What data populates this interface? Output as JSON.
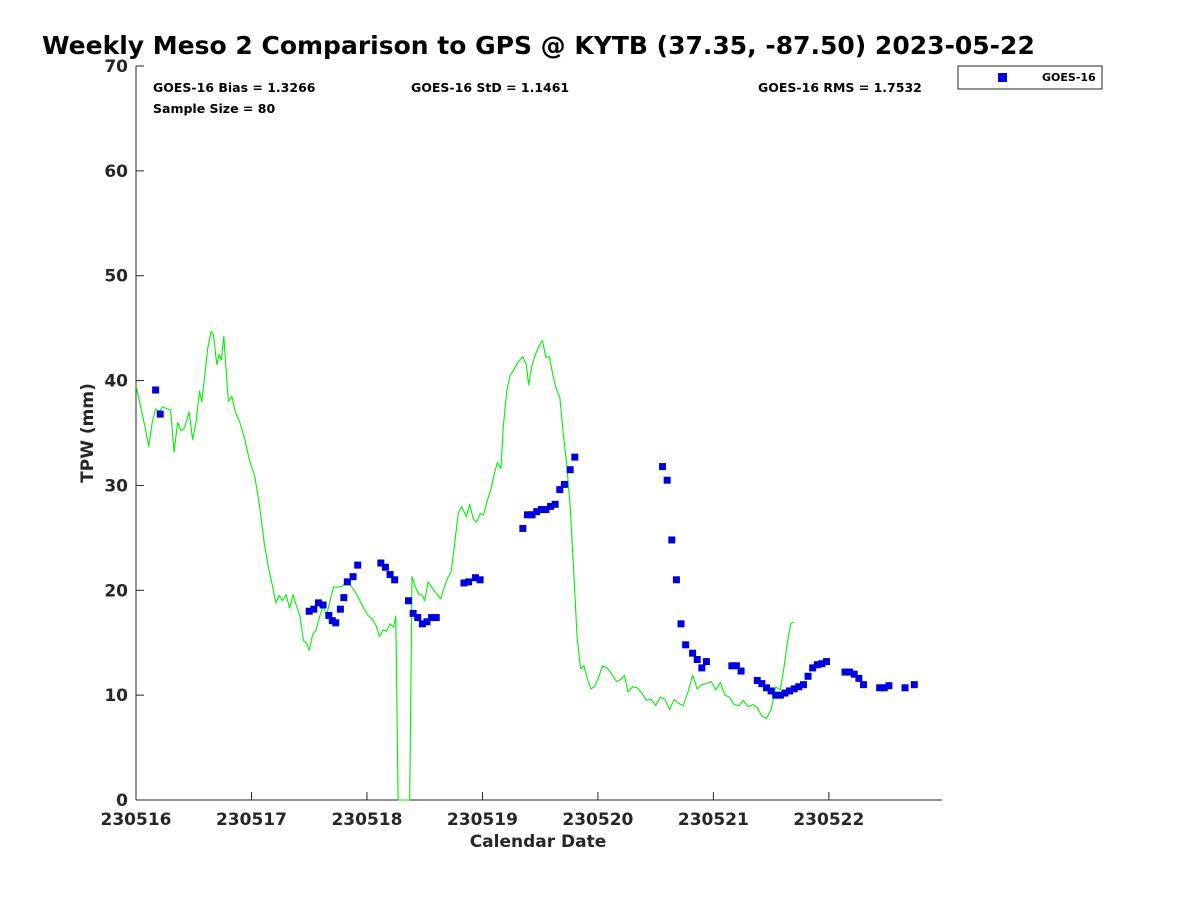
{
  "chart_data": {
    "type": "line",
    "title": "Weekly Meso 2 Comparison to GPS @ KYTB (37.35, -87.50) 2023-05-22",
    "xlabel": "Calendar Date",
    "ylabel": "TPW (mm)",
    "xlim": [
      0,
      6.98
    ],
    "ylim": [
      0,
      70
    ],
    "yticks": [
      0,
      10,
      20,
      30,
      40,
      50,
      60,
      70
    ],
    "xticks": [
      {
        "value": 0,
        "label": "230516"
      },
      {
        "value": 1,
        "label": "230517"
      },
      {
        "value": 2,
        "label": "230518"
      },
      {
        "value": 3,
        "label": "230519"
      },
      {
        "value": 4,
        "label": "230520"
      },
      {
        "value": 5,
        "label": "230521"
      },
      {
        "value": 6,
        "label": "230522"
      }
    ],
    "grid": false,
    "legend_position": "outside top-right",
    "stats": {
      "bias": "GOES-16 Bias = 1.3266",
      "std": "GOES-16 StD = 1.1461",
      "rms": "GOES-16 RMS = 1.7532",
      "sample": "Sample Size = 80"
    },
    "series": [
      {
        "type": "line",
        "color": "#00ee00",
        "points": [
          [
            0.0,
            39.5
          ],
          [
            0.04,
            37.5
          ],
          [
            0.08,
            35.5
          ],
          [
            0.11,
            33.7
          ],
          [
            0.14,
            36.0
          ],
          [
            0.17,
            37.3
          ],
          [
            0.2,
            37.0
          ],
          [
            0.23,
            37.5
          ],
          [
            0.27,
            37.3
          ],
          [
            0.3,
            37.2
          ],
          [
            0.33,
            33.2
          ],
          [
            0.36,
            36.0
          ],
          [
            0.39,
            35.2
          ],
          [
            0.42,
            35.5
          ],
          [
            0.46,
            37.0
          ],
          [
            0.49,
            34.4
          ],
          [
            0.52,
            36.0
          ],
          [
            0.55,
            39.0
          ],
          [
            0.57,
            38.0
          ],
          [
            0.6,
            41.0
          ],
          [
            0.62,
            43.0
          ],
          [
            0.65,
            44.7
          ],
          [
            0.67,
            44.4
          ],
          [
            0.7,
            41.5
          ],
          [
            0.72,
            42.5
          ],
          [
            0.74,
            42.0
          ],
          [
            0.76,
            44.2
          ],
          [
            0.78,
            41.0
          ],
          [
            0.8,
            38.0
          ],
          [
            0.83,
            38.5
          ],
          [
            0.86,
            37.0
          ],
          [
            0.9,
            36.0
          ],
          [
            0.94,
            34.5
          ],
          [
            0.98,
            32.5
          ],
          [
            1.03,
            30.8
          ],
          [
            1.07,
            28.0
          ],
          [
            1.11,
            24.5
          ],
          [
            1.15,
            22.0
          ],
          [
            1.18,
            20.5
          ],
          [
            1.21,
            18.8
          ],
          [
            1.24,
            19.5
          ],
          [
            1.27,
            19.0
          ],
          [
            1.3,
            19.6
          ],
          [
            1.33,
            18.3
          ],
          [
            1.36,
            19.6
          ],
          [
            1.39,
            18.5
          ],
          [
            1.42,
            17.5
          ],
          [
            1.45,
            15.2
          ],
          [
            1.48,
            14.9
          ],
          [
            1.5,
            14.3
          ],
          [
            1.53,
            15.8
          ],
          [
            1.56,
            16.2
          ],
          [
            1.59,
            17.5
          ],
          [
            1.62,
            18.5
          ],
          [
            1.65,
            17.6
          ],
          [
            1.68,
            19.0
          ],
          [
            1.71,
            20.3
          ],
          [
            1.75,
            20.3
          ],
          [
            1.79,
            20.4
          ],
          [
            1.82,
            20.9
          ],
          [
            1.85,
            20.6
          ],
          [
            1.89,
            20.0
          ],
          [
            1.93,
            19.2
          ],
          [
            1.97,
            18.3
          ],
          [
            2.01,
            17.6
          ],
          [
            2.05,
            17.2
          ],
          [
            2.08,
            16.6
          ],
          [
            2.11,
            15.6
          ],
          [
            2.14,
            16.2
          ],
          [
            2.17,
            16.1
          ],
          [
            2.2,
            16.8
          ],
          [
            2.23,
            16.5
          ],
          [
            2.25,
            17.5
          ],
          [
            2.27,
            0.0
          ],
          [
            2.37,
            0.0
          ],
          [
            2.39,
            21.3
          ],
          [
            2.42,
            20.3
          ],
          [
            2.45,
            19.6
          ],
          [
            2.48,
            19.5
          ],
          [
            2.5,
            19.0
          ],
          [
            2.53,
            20.8
          ],
          [
            2.56,
            20.3
          ],
          [
            2.6,
            19.7
          ],
          [
            2.64,
            19.2
          ],
          [
            2.67,
            20.3
          ],
          [
            2.7,
            21.2
          ],
          [
            2.73,
            21.8
          ],
          [
            2.76,
            24.5
          ],
          [
            2.79,
            27.3
          ],
          [
            2.82,
            28.0
          ],
          [
            2.86,
            27.0
          ],
          [
            2.89,
            28.2
          ],
          [
            2.92,
            26.8
          ],
          [
            2.95,
            26.5
          ],
          [
            2.98,
            27.3
          ],
          [
            3.01,
            27.2
          ],
          [
            3.04,
            28.5
          ],
          [
            3.07,
            29.5
          ],
          [
            3.1,
            31.0
          ],
          [
            3.13,
            32.2
          ],
          [
            3.16,
            31.6
          ],
          [
            3.18,
            35.5
          ],
          [
            3.21,
            39.0
          ],
          [
            3.24,
            40.5
          ],
          [
            3.27,
            41.0
          ],
          [
            3.31,
            41.8
          ],
          [
            3.35,
            42.3
          ],
          [
            3.38,
            41.5
          ],
          [
            3.4,
            39.6
          ],
          [
            3.43,
            41.5
          ],
          [
            3.46,
            42.5
          ],
          [
            3.49,
            43.3
          ],
          [
            3.52,
            43.8
          ],
          [
            3.55,
            42.2
          ],
          [
            3.58,
            42.3
          ],
          [
            3.61,
            40.5
          ],
          [
            3.64,
            39.2
          ],
          [
            3.67,
            38.4
          ],
          [
            3.7,
            35.0
          ],
          [
            3.73,
            32.0
          ],
          [
            3.76,
            28.0
          ],
          [
            3.79,
            22.0
          ],
          [
            3.82,
            15.5
          ],
          [
            3.85,
            12.5
          ],
          [
            3.88,
            12.8
          ],
          [
            3.91,
            11.5
          ],
          [
            3.94,
            10.6
          ],
          [
            3.97,
            10.8
          ],
          [
            4.0,
            11.5
          ],
          [
            4.04,
            12.8
          ],
          [
            4.08,
            12.6
          ],
          [
            4.12,
            12.0
          ],
          [
            4.16,
            11.3
          ],
          [
            4.2,
            11.5
          ],
          [
            4.23,
            11.9
          ],
          [
            4.26,
            10.3
          ],
          [
            4.3,
            10.8
          ],
          [
            4.34,
            10.7
          ],
          [
            4.38,
            10.2
          ],
          [
            4.42,
            9.5
          ],
          [
            4.46,
            9.6
          ],
          [
            4.5,
            9.0
          ],
          [
            4.54,
            9.8
          ],
          [
            4.58,
            9.6
          ],
          [
            4.62,
            8.6
          ],
          [
            4.66,
            9.6
          ],
          [
            4.7,
            9.2
          ],
          [
            4.74,
            9.0
          ],
          [
            4.78,
            10.3
          ],
          [
            4.82,
            11.9
          ],
          [
            4.86,
            10.6
          ],
          [
            4.9,
            11.0
          ],
          [
            4.94,
            11.1
          ],
          [
            4.98,
            11.3
          ],
          [
            5.02,
            10.5
          ],
          [
            5.06,
            11.2
          ],
          [
            5.1,
            10.0
          ],
          [
            5.14,
            9.8
          ],
          [
            5.18,
            9.1
          ],
          [
            5.22,
            9.0
          ],
          [
            5.26,
            9.5
          ],
          [
            5.3,
            8.9
          ],
          [
            5.34,
            9.1
          ],
          [
            5.38,
            8.8
          ],
          [
            5.42,
            8.0
          ],
          [
            5.46,
            7.8
          ],
          [
            5.5,
            8.6
          ],
          [
            5.54,
            10.8
          ],
          [
            5.58,
            10.5
          ],
          [
            5.61,
            12.5
          ],
          [
            5.64,
            15.0
          ],
          [
            5.67,
            16.8
          ],
          [
            5.7,
            17.0
          ]
        ]
      },
      {
        "name": "GOES-16",
        "type": "scatter",
        "color": "#0000dd",
        "points": [
          [
            0.17,
            39.1
          ],
          [
            0.21,
            36.8
          ],
          [
            1.5,
            18.0
          ],
          [
            1.54,
            18.2
          ],
          [
            1.58,
            18.8
          ],
          [
            1.62,
            18.6
          ],
          [
            1.67,
            17.6
          ],
          [
            1.7,
            17.1
          ],
          [
            1.73,
            16.9
          ],
          [
            1.77,
            18.2
          ],
          [
            1.8,
            19.3
          ],
          [
            1.83,
            20.8
          ],
          [
            1.88,
            21.3
          ],
          [
            1.92,
            22.4
          ],
          [
            2.12,
            22.6
          ],
          [
            2.16,
            22.2
          ],
          [
            2.2,
            21.5
          ],
          [
            2.24,
            21.0
          ],
          [
            2.36,
            19.0
          ],
          [
            2.4,
            17.8
          ],
          [
            2.44,
            17.4
          ],
          [
            2.48,
            16.8
          ],
          [
            2.52,
            17.0
          ],
          [
            2.56,
            17.4
          ],
          [
            2.6,
            17.4
          ],
          [
            2.84,
            20.7
          ],
          [
            2.88,
            20.8
          ],
          [
            2.94,
            21.2
          ],
          [
            2.98,
            21.0
          ],
          [
            3.35,
            25.9
          ],
          [
            3.39,
            27.2
          ],
          [
            3.43,
            27.2
          ],
          [
            3.47,
            27.5
          ],
          [
            3.51,
            27.7
          ],
          [
            3.55,
            27.7
          ],
          [
            3.59,
            28.0
          ],
          [
            3.63,
            28.2
          ],
          [
            3.67,
            29.6
          ],
          [
            3.71,
            30.1
          ],
          [
            3.76,
            31.5
          ],
          [
            3.8,
            32.7
          ],
          [
            4.56,
            31.8
          ],
          [
            4.6,
            30.5
          ],
          [
            4.64,
            24.8
          ],
          [
            4.68,
            21.0
          ],
          [
            4.72,
            16.8
          ],
          [
            4.76,
            14.8
          ],
          [
            4.82,
            14.0
          ],
          [
            4.86,
            13.4
          ],
          [
            4.9,
            12.6
          ],
          [
            4.94,
            13.2
          ],
          [
            5.16,
            12.8
          ],
          [
            5.2,
            12.8
          ],
          [
            5.24,
            12.3
          ],
          [
            5.38,
            11.4
          ],
          [
            5.42,
            11.1
          ],
          [
            5.46,
            10.7
          ],
          [
            5.5,
            10.4
          ],
          [
            5.54,
            10.0
          ],
          [
            5.58,
            10.0
          ],
          [
            5.62,
            10.2
          ],
          [
            5.66,
            10.4
          ],
          [
            5.7,
            10.6
          ],
          [
            5.74,
            10.8
          ],
          [
            5.78,
            11.0
          ],
          [
            5.82,
            11.8
          ],
          [
            5.86,
            12.6
          ],
          [
            5.9,
            12.9
          ],
          [
            5.94,
            13.0
          ],
          [
            5.98,
            13.2
          ],
          [
            6.14,
            12.2
          ],
          [
            6.18,
            12.2
          ],
          [
            6.22,
            12.0
          ],
          [
            6.26,
            11.6
          ],
          [
            6.3,
            11.0
          ],
          [
            6.44,
            10.7
          ],
          [
            6.48,
            10.7
          ],
          [
            6.52,
            10.9
          ],
          [
            6.66,
            10.7
          ],
          [
            6.74,
            11.0
          ]
        ]
      }
    ]
  }
}
